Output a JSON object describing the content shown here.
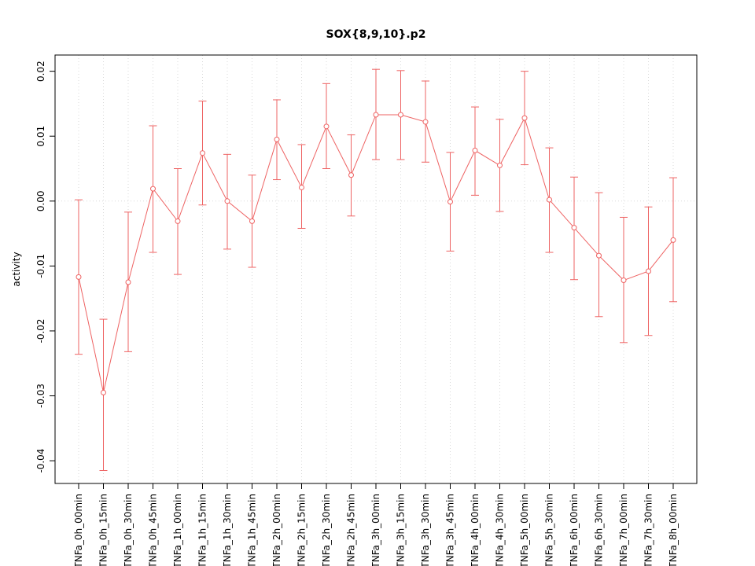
{
  "chart_data": {
    "type": "line",
    "title": "SOX{8,9,10}.p2",
    "xlabel": "",
    "ylabel": "activity",
    "color": "#ee6363",
    "grid_color": "#d9d9d9",
    "axis_color": "#000000",
    "point_style": "open-circle",
    "error_bars": true,
    "legend": "none",
    "ylim": [
      -0.0435,
      0.0225
    ],
    "yticks": [
      0.02,
      0.01,
      0.0,
      -0.01,
      -0.02,
      -0.03,
      -0.04
    ],
    "ytick_labels": [
      "0.02",
      "0.01",
      "0.00",
      "-0.01",
      "-0.02",
      "-0.03",
      "-0.04"
    ],
    "categories": [
      "TNFa_0h_00min",
      "TNFa_0h_15min",
      "TNFa_0h_30min",
      "TNFa_0h_45min",
      "TNFa_1h_00min",
      "TNFa_1h_15min",
      "TNFa_1h_30min",
      "TNFa_1h_45min",
      "TNFa_2h_00min",
      "TNFa_2h_15min",
      "TNFa_2h_30min",
      "TNFa_2h_45min",
      "TNFa_3h_00min",
      "TNFa_3h_15min",
      "TNFa_3h_30min",
      "TNFa_3h_45min",
      "TNFa_4h_00min",
      "TNFa_4h_30min",
      "TNFa_5h_00min",
      "TNFa_5h_30min",
      "TNFa_6h_00min",
      "TNFa_6h_30min",
      "TNFa_7h_00min",
      "TNFa_7h_30min",
      "TNFa_8h_00min"
    ],
    "values": [
      -0.0117,
      -0.0295,
      -0.0125,
      0.0019,
      -0.0031,
      0.0074,
      0.0,
      -0.0031,
      0.0095,
      0.0021,
      0.0115,
      0.004,
      0.0133,
      0.0133,
      0.0122,
      -0.0001,
      0.0078,
      0.0055,
      0.0128,
      0.0002,
      -0.0041,
      -0.0084,
      -0.0122,
      -0.0108,
      -0.006
    ],
    "err_high": [
      0.0002,
      -0.0182,
      -0.0017,
      0.0116,
      0.005,
      0.0154,
      0.0072,
      0.004,
      0.0156,
      0.0087,
      0.0181,
      0.0102,
      0.0203,
      0.0201,
      0.0185,
      0.0075,
      0.0145,
      0.0126,
      0.02,
      0.0082,
      0.0037,
      0.0013,
      -0.0025,
      -0.0009,
      0.0036
    ],
    "err_low": [
      -0.0236,
      -0.0415,
      -0.0232,
      -0.0079,
      -0.0113,
      -0.0006,
      -0.0074,
      -0.0102,
      0.0033,
      -0.0042,
      0.005,
      -0.0023,
      0.0064,
      0.0064,
      0.006,
      -0.0077,
      0.0009,
      -0.0016,
      0.0056,
      -0.0079,
      -0.0121,
      -0.0178,
      -0.0218,
      -0.0207,
      -0.0155
    ],
    "grid": "vertical-dotted-per-category-plus-zero-line"
  }
}
